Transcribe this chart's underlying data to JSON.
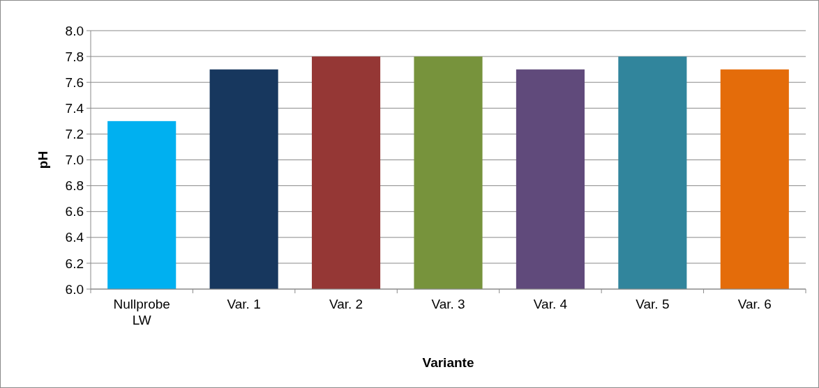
{
  "chart_data": {
    "type": "bar",
    "xlabel": "Variante",
    "ylabel": "pH",
    "categories": [
      "Nullprobe LW",
      "Var. 1",
      "Var. 2",
      "Var. 3",
      "Var. 4",
      "Var. 5",
      "Var. 6"
    ],
    "values": [
      7.3,
      7.7,
      7.8,
      7.8,
      7.7,
      7.8,
      7.7
    ],
    "colors": [
      "#00b0f0",
      "#17375e",
      "#953735",
      "#77933c",
      "#604a7b",
      "#31859c",
      "#e46c0a"
    ],
    "ylim": [
      6.0,
      8.0
    ],
    "yticks": [
      {
        "value": 6.0,
        "label": "6.0"
      },
      {
        "value": 6.2,
        "label": "6.2"
      },
      {
        "value": 6.4,
        "label": "6.4"
      },
      {
        "value": 6.6,
        "label": "6.6"
      },
      {
        "value": 6.8,
        "label": "6.8"
      },
      {
        "value": 7.0,
        "label": "7.0"
      },
      {
        "value": 7.2,
        "label": "7.2"
      },
      {
        "value": 7.4,
        "label": "7.4"
      },
      {
        "value": 7.6,
        "label": "7.6"
      },
      {
        "value": 7.8,
        "label": "7.8"
      },
      {
        "value": 8.0,
        "label": "8.0"
      }
    ],
    "grid": "y"
  }
}
